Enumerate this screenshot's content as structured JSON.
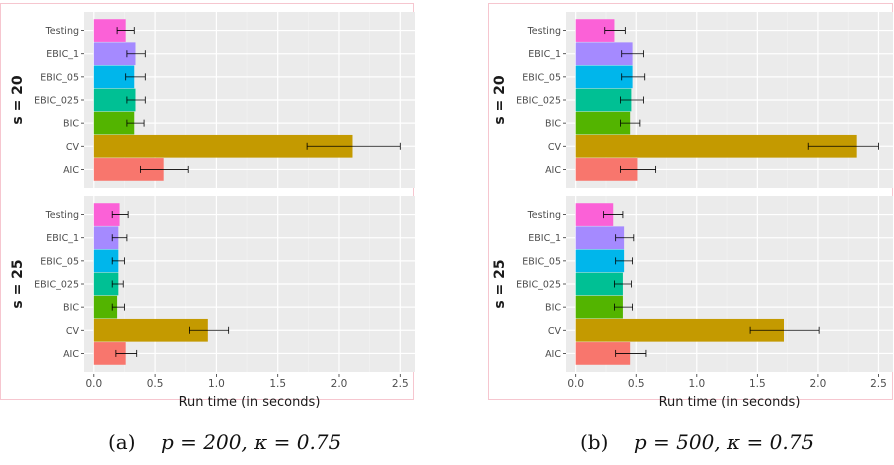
{
  "chart_data": [
    {
      "type": "bar",
      "orientation": "horizontal",
      "facet_variable": "s",
      "facets": [
        {
          "label": "s = 20",
          "categories": [
            "AIC",
            "CV",
            "BIC",
            "EBIC_025",
            "EBIC_05",
            "EBIC_1",
            "Testing"
          ],
          "values": [
            0.57,
            2.11,
            0.33,
            0.34,
            0.33,
            0.34,
            0.26
          ],
          "error_low": [
            0.38,
            1.74,
            0.27,
            0.27,
            0.26,
            0.27,
            0.19
          ],
          "error_high": [
            0.77,
            2.5,
            0.41,
            0.42,
            0.42,
            0.42,
            0.33
          ]
        },
        {
          "label": "s = 25",
          "categories": [
            "AIC",
            "CV",
            "BIC",
            "EBIC_025",
            "EBIC_05",
            "EBIC_1",
            "Testing"
          ],
          "values": [
            0.26,
            0.93,
            0.19,
            0.2,
            0.2,
            0.2,
            0.21
          ],
          "error_low": [
            0.18,
            0.78,
            0.15,
            0.15,
            0.15,
            0.15,
            0.15
          ],
          "error_high": [
            0.35,
            1.1,
            0.25,
            0.24,
            0.25,
            0.27,
            0.28
          ]
        }
      ],
      "xlabel": "Run time (in seconds)",
      "ylabel": "",
      "xlim": [
        -0.08,
        2.62
      ],
      "xticks": [
        "0.0",
        "0.5",
        "1.0",
        "1.5",
        "2.0",
        "2.5"
      ],
      "grid": true,
      "legend": "none",
      "caption_letter": "(a)",
      "caption_p": "p = 200,",
      "caption_kappa": "κ = 0.75"
    },
    {
      "type": "bar",
      "orientation": "horizontal",
      "facet_variable": "s",
      "facets": [
        {
          "label": "s = 20",
          "categories": [
            "AIC",
            "CV",
            "BIC",
            "EBIC_025",
            "EBIC_05",
            "EBIC_1",
            "Testing"
          ],
          "values": [
            0.51,
            2.32,
            0.45,
            0.46,
            0.47,
            0.47,
            0.32
          ],
          "error_low": [
            0.37,
            1.92,
            0.37,
            0.37,
            0.38,
            0.38,
            0.24
          ],
          "error_high": [
            0.66,
            2.5,
            0.53,
            0.56,
            0.57,
            0.56,
            0.41
          ]
        },
        {
          "label": "s = 25",
          "categories": [
            "AIC",
            "CV",
            "BIC",
            "EBIC_025",
            "EBIC_05",
            "EBIC_1",
            "Testing"
          ],
          "values": [
            0.45,
            1.72,
            0.39,
            0.39,
            0.4,
            0.4,
            0.31
          ],
          "error_low": [
            0.33,
            1.44,
            0.32,
            0.32,
            0.33,
            0.33,
            0.23
          ],
          "error_high": [
            0.58,
            2.01,
            0.47,
            0.46,
            0.47,
            0.48,
            0.39
          ]
        }
      ],
      "xlabel": "Run time (in seconds)",
      "ylabel": "",
      "xlim": [
        -0.08,
        2.62
      ],
      "xticks": [
        "0.0",
        "0.5",
        "1.0",
        "1.5",
        "2.0",
        "2.5"
      ],
      "grid": true,
      "legend": "none",
      "caption_letter": "(b)",
      "caption_p": "p = 500,",
      "caption_kappa": "κ = 0.75"
    }
  ],
  "colors": {
    "AIC": "#F8766D",
    "CV": "#C49A00",
    "BIC": "#53B400",
    "EBIC_025": "#00C094",
    "EBIC_05": "#00B6EB",
    "EBIC_1": "#A58AFF",
    "Testing": "#FB61D7",
    "panel_background": "#EBEBEB",
    "grid_major": "#FFFFFF",
    "grid_minor": "#F4F4F4",
    "plot_border": "#F6C6CF",
    "text": "#4D4D4D"
  }
}
